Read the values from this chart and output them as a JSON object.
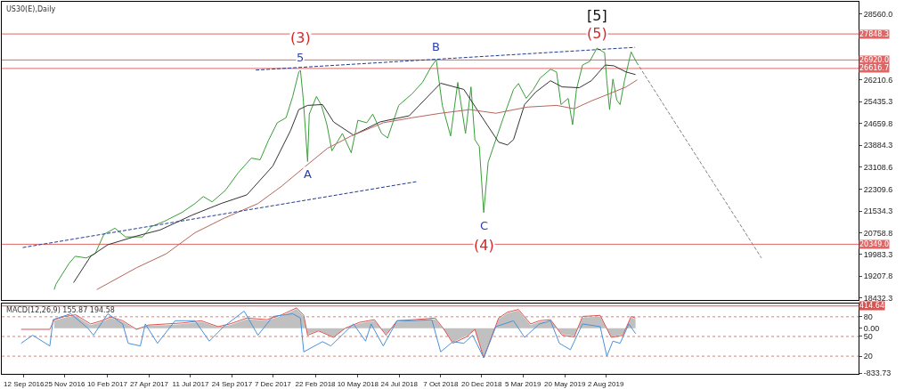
{
  "chart_data": [
    {
      "type": "line",
      "title": "US30(E),Daily",
      "xlim": [
        "2016-08-03",
        "2020-11-02"
      ],
      "ylim": [
        18355,
        28995
      ],
      "tick_labels": "y",
      "yticks": [
        {
          "value": 28560.0,
          "label": "28560.0"
        },
        {
          "value": 26210.6,
          "label": "26210.6"
        },
        {
          "value": 25435.3,
          "label": "25435.3"
        },
        {
          "value": 24659.8,
          "label": "24659.8"
        },
        {
          "value": 23884.3,
          "label": "23884.3"
        },
        {
          "value": 23108.6,
          "label": "23108.6"
        },
        {
          "value": 22309.6,
          "label": "22309.6"
        },
        {
          "value": 21534.3,
          "label": "21534.3"
        },
        {
          "value": 20758.8,
          "label": "20758.8"
        },
        {
          "value": 19983.3,
          "label": "19983.3"
        },
        {
          "value": 19207.8,
          "label": "19207.8"
        },
        {
          "value": 18432.3,
          "label": "18432.3"
        }
      ],
      "series": [
        {
          "color": "#3a9d3a",
          "x": [
            "2016-11-06",
            "2016-11-09",
            "2016-12-03",
            "2016-12-14",
            "2017-01-03",
            "2017-01-19",
            "2017-02-04",
            "2017-02-24",
            "2017-03-15",
            "2017-04-15",
            "2017-05-01",
            "2017-05-25",
            "2017-06-25",
            "2017-07-19",
            "2017-08-03",
            "2017-08-19",
            "2017-09-12",
            "2017-10-05",
            "2017-10-29",
            "2017-11-14",
            "2017-11-29",
            "2017-12-15",
            "2017-12-31",
            "2018-01-12",
            "2018-01-23",
            "2018-01-26",
            "2018-01-31",
            "2018-02-08",
            "2018-02-11",
            "2018-02-24",
            "2018-03-05",
            "2018-03-15",
            "2018-03-24",
            "2018-04-12",
            "2018-04-28",
            "2018-05-10",
            "2018-05-26",
            "2018-06-06",
            "2018-06-22",
            "2018-07-03",
            "2018-07-23",
            "2018-08-16",
            "2018-09-04",
            "2018-09-19",
            "2018-09-29",
            "2018-10-10",
            "2018-10-25",
            "2018-11-07",
            "2018-11-21",
            "2018-12-01",
            "2018-12-08",
            "2018-12-16",
            "2018-12-24",
            "2019-01-01",
            "2019-01-15",
            "2019-01-28",
            "2019-02-16",
            "2019-02-25",
            "2019-03-11",
            "2019-03-24",
            "2019-04-05",
            "2019-04-24",
            "2019-05-05",
            "2019-05-13",
            "2019-05-26",
            "2019-06-03",
            "2019-06-10",
            "2019-06-21",
            "2019-07-04",
            "2019-07-17",
            "2019-07-31",
            "2019-08-04",
            "2019-08-09",
            "2019-08-15",
            "2019-08-22",
            "2019-08-28",
            "2019-09-05",
            "2019-09-13",
            "2019-09-17",
            "2019-09-25",
            "2019-09-30"
          ],
          "values": [
            18730,
            18920,
            19670,
            19920,
            19860,
            20010,
            20700,
            20920,
            20610,
            20610,
            20980,
            21170,
            21480,
            21800,
            22050,
            21860,
            22270,
            22890,
            23420,
            23360,
            24050,
            24680,
            24860,
            25620,
            26490,
            26550,
            25550,
            23300,
            24990,
            25620,
            25300,
            24610,
            23680,
            24300,
            23610,
            24770,
            24680,
            24990,
            24300,
            24140,
            25300,
            25710,
            26120,
            26650,
            26930,
            25300,
            24210,
            26120,
            24300,
            25960,
            24080,
            23830,
            21480,
            23270,
            24080,
            24830,
            25870,
            26080,
            25550,
            25870,
            26270,
            26590,
            26490,
            25330,
            25550,
            24610,
            25870,
            26740,
            26870,
            27340,
            27180,
            26180,
            25150,
            26240,
            25490,
            25330,
            26180,
            26870,
            27210,
            26900,
            26740
          ]
        },
        {
          "color": "#333333",
          "x": [
            "2016-12-11",
            "2017-01-11",
            "2017-02-11",
            "2017-04-04",
            "2017-05-17",
            "2017-07-14",
            "2017-09-04",
            "2017-10-21",
            "2017-12-07",
            "2018-01-08",
            "2018-01-23",
            "2018-02-08",
            "2018-03-07",
            "2018-03-27",
            "2018-05-02",
            "2018-06-19",
            "2018-08-11",
            "2018-10-07",
            "2018-11-18",
            "2018-12-30",
            "2019-01-20",
            "2019-02-05",
            "2019-02-16",
            "2019-03-08",
            "2019-03-28",
            "2019-04-24",
            "2019-05-15",
            "2019-06-15",
            "2019-07-07",
            "2019-08-01",
            "2019-08-17",
            "2019-09-08",
            "2019-09-25"
          ],
          "values": [
            18980,
            19920,
            20330,
            20640,
            20860,
            21390,
            21800,
            22110,
            23140,
            24400,
            25150,
            25300,
            25330,
            24710,
            24240,
            24710,
            24930,
            26090,
            25870,
            24610,
            23990,
            23890,
            24080,
            25330,
            25770,
            26180,
            25960,
            25930,
            26180,
            26740,
            26710,
            26490,
            26400
          ]
        },
        {
          "color": "#b5655a",
          "x": [
            "2017-01-22",
            "2017-04-04",
            "2017-05-28",
            "2017-07-19",
            "2017-09-09",
            "2017-11-10",
            "2017-12-23",
            "2018-02-03",
            "2018-03-16",
            "2018-04-28",
            "2018-06-25",
            "2018-08-16",
            "2018-10-07",
            "2018-11-29",
            "2019-01-15",
            "2019-03-13",
            "2019-05-05",
            "2019-06-06",
            "2019-07-07",
            "2019-08-08",
            "2019-09-08",
            "2019-09-28"
          ],
          "values": [
            18730,
            19510,
            20010,
            20760,
            21270,
            21800,
            22420,
            23110,
            23770,
            24210,
            24680,
            24860,
            25020,
            25150,
            25020,
            25240,
            25300,
            25180,
            25460,
            25710,
            25960,
            26210
          ]
        },
        {
          "color": "#1f3a93",
          "line_style": "dashed",
          "x": [
            "2016-09-10",
            "2018-08-24"
          ],
          "values": [
            20230,
            22580
          ]
        },
        {
          "color": "#1f3a93",
          "line_style": "dashed",
          "x": [
            "2017-11-06",
            "2019-09-24"
          ],
          "values": [
            26560,
            27370
          ]
        },
        {
          "color": "#808080",
          "line_style": "dashed",
          "x": [
            "2019-10-02",
            "2020-05-10"
          ],
          "values": [
            26680,
            19860
          ]
        }
      ],
      "ref_lines": [
        {
          "axis": "y",
          "value": 27848.3,
          "label": "27848.3",
          "color": "#e06666"
        },
        {
          "axis": "y",
          "value": 26920.0,
          "label": "26920.0",
          "color": "#e06666"
        },
        {
          "axis": "y",
          "value": 26616.7,
          "label": "26616.7",
          "color": "#e06666"
        },
        {
          "axis": "y",
          "value": 20349.0,
          "label": "20349.0",
          "color": "#e06666"
        }
      ],
      "annotations": [
        {
          "text": "5",
          "x": "2018-01-26",
          "y": 26550
        },
        {
          "text": "(3)",
          "x": "2018-01-26",
          "y": 26550
        },
        {
          "text": "A",
          "x": "2018-02-08",
          "y": 23300
        },
        {
          "text": "B",
          "x": "2018-09-29",
          "y": 26930
        },
        {
          "text": "C",
          "x": "2018-12-24",
          "y": 21480
        },
        {
          "text": "(4)",
          "x": "2018-12-24",
          "y": 21480
        },
        {
          "text": "(5)",
          "x": "2019-07-17",
          "y": 27340
        },
        {
          "text": "[5]",
          "x": "2019-07-17",
          "y": 27340
        }
      ]
    },
    {
      "type": "line",
      "title": "MACD(12,26,9) 155.87 194.58",
      "xlim": [
        "2016-08-03",
        "2020-11-02"
      ],
      "ylim": [
        -850,
        458
      ],
      "y2lim": [
        -7,
        100
      ],
      "y2ticks": [
        80,
        50,
        20
      ],
      "xticks": [
        {
          "value": "2016-09-12",
          "label": "12 Sep 2016"
        },
        {
          "value": "2016-11-25",
          "label": "25 Nov 2016"
        },
        {
          "value": "2017-02-10",
          "label": "10 Feb 2017"
        },
        {
          "value": "2017-04-27",
          "label": "27 Apr 2017"
        },
        {
          "value": "2017-07-11",
          "label": "11 Jul 2017"
        },
        {
          "value": "2017-09-24",
          "label": "24 Sep 2017"
        },
        {
          "value": "2017-12-07",
          "label": "7 Dec 2017"
        },
        {
          "value": "2018-02-22",
          "label": "22 Feb 2018"
        },
        {
          "value": "2018-05-10",
          "label": "10 May 2018"
        },
        {
          "value": "2018-07-24",
          "label": "24 Jul 2018"
        },
        {
          "value": "2018-10-07",
          "label": "7 Oct 2018"
        },
        {
          "value": "2018-12-20",
          "label": "20 Dec 2018"
        },
        {
          "value": "2019-03-05",
          "label": "5 Mar 2019"
        },
        {
          "value": "2019-05-20",
          "label": "20 May 2019"
        },
        {
          "value": "2019-08-02",
          "label": "2 Aug 2019"
        }
      ],
      "yticks": [
        {
          "value": 0,
          "label": "0.00"
        },
        {
          "value": -833.73,
          "label": "-833.73"
        }
      ],
      "series": [
        {
          "type": "area",
          "color": "#c0c0c0",
          "x": [
            "2016-11-06",
            "2016-11-25",
            "2016-12-15",
            "2017-01-11",
            "2017-01-31",
            "2017-02-16",
            "2017-03-10",
            "2017-04-04",
            "2017-04-26",
            "2017-05-28",
            "2017-06-28",
            "2017-07-30",
            "2017-08-30",
            "2017-09-20",
            "2017-10-21",
            "2017-11-26",
            "2017-12-23",
            "2018-01-19",
            "2018-02-01",
            "2018-02-08",
            "2018-02-28",
            "2018-03-27",
            "2018-04-17",
            "2018-05-13",
            "2018-06-09",
            "2018-06-30",
            "2018-07-20",
            "2018-08-20",
            "2018-09-27",
            "2018-10-13",
            "2018-10-29",
            "2018-11-23",
            "2018-12-08",
            "2018-12-24",
            "2019-01-20",
            "2019-02-05",
            "2019-02-25",
            "2019-03-19",
            "2019-04-04",
            "2019-04-24",
            "2019-05-15",
            "2019-06-06",
            "2019-06-21",
            "2019-07-23",
            "2019-08-12",
            "2019-09-02",
            "2019-09-17",
            "2019-09-25"
          ],
          "values": [
            140,
            200,
            230,
            60,
            120,
            190,
            120,
            -30,
            50,
            60,
            80,
            120,
            20,
            60,
            170,
            140,
            230,
            360,
            220,
            -110,
            -40,
            -160,
            0,
            90,
            140,
            -110,
            120,
            140,
            170,
            -30,
            -260,
            -140,
            -30,
            -530,
            170,
            280,
            330,
            60,
            120,
            140,
            -110,
            -140,
            200,
            220,
            -160,
            -110,
            200,
            170
          ]
        },
        {
          "color": "#d9534f",
          "x": [
            "2016-09-07",
            "2016-10-29",
            "2016-11-06",
            "2016-11-25",
            "2016-12-15",
            "2017-01-11",
            "2017-01-31",
            "2017-02-16",
            "2017-03-10",
            "2017-04-04",
            "2017-04-26",
            "2017-05-28",
            "2017-06-28",
            "2017-07-30",
            "2017-08-30",
            "2017-09-20",
            "2017-10-21",
            "2017-11-26",
            "2017-12-23",
            "2018-01-19",
            "2018-02-01",
            "2018-02-08",
            "2018-02-28",
            "2018-03-27",
            "2018-04-17",
            "2018-05-13",
            "2018-06-09",
            "2018-06-30",
            "2018-07-20",
            "2018-08-20",
            "2018-09-27",
            "2018-10-13",
            "2018-10-29",
            "2018-11-23",
            "2018-12-08",
            "2018-12-24",
            "2019-01-20",
            "2019-02-05",
            "2019-02-25",
            "2019-03-19",
            "2019-04-04",
            "2019-04-24",
            "2019-05-15",
            "2019-06-06",
            "2019-06-21",
            "2019-07-23",
            "2019-08-12",
            "2019-09-02",
            "2019-09-17",
            "2019-09-25"
          ],
          "values": [
            -20,
            -20,
            160,
            220,
            250,
            80,
            140,
            210,
            140,
            -20,
            60,
            80,
            100,
            140,
            30,
            80,
            190,
            160,
            250,
            380,
            240,
            -130,
            -50,
            -170,
            0,
            110,
            160,
            -130,
            140,
            160,
            190,
            -20,
            -280,
            -160,
            -20,
            -550,
            190,
            300,
            350,
            80,
            140,
            160,
            -130,
            -160,
            220,
            240,
            -170,
            -130,
            220,
            190
          ]
        },
        {
          "color": "#4a90d9",
          "x": [
            "2016-09-07",
            "2016-09-28",
            "2016-10-29",
            "2016-11-04",
            "2016-12-06",
            "2017-01-06",
            "2017-01-16",
            "2017-02-11",
            "2017-03-10",
            "2017-03-20",
            "2017-04-11",
            "2017-04-20",
            "2017-05-12",
            "2017-06-13",
            "2017-07-19",
            "2017-08-14",
            "2017-09-09",
            "2017-10-16",
            "2017-11-10",
            "2017-12-07",
            "2018-01-12",
            "2018-01-26",
            "2018-02-01",
            "2018-03-07",
            "2018-03-22",
            "2018-05-02",
            "2018-05-24",
            "2018-06-03",
            "2018-06-25",
            "2018-07-20",
            "2018-08-16",
            "2018-09-21",
            "2018-10-07",
            "2018-10-29",
            "2018-11-18",
            "2018-12-04",
            "2018-12-24",
            "2019-01-15",
            "2019-02-16",
            "2019-03-08",
            "2019-04-04",
            "2019-04-24",
            "2019-05-10",
            "2019-05-30",
            "2019-06-21",
            "2019-07-23",
            "2019-08-04",
            "2019-08-15",
            "2019-08-28",
            "2019-09-13",
            "2019-09-25"
          ],
          "values": [
            -280,
            -130,
            -330,
            160,
            270,
            0,
            -130,
            270,
            80,
            -280,
            -330,
            80,
            -280,
            140,
            140,
            -240,
            30,
            320,
            -130,
            220,
            270,
            190,
            -440,
            -250,
            -330,
            80,
            -240,
            80,
            -330,
            140,
            140,
            160,
            -440,
            -250,
            -280,
            -130,
            -550,
            30,
            140,
            -170,
            80,
            140,
            -280,
            -400,
            80,
            30,
            -520,
            -240,
            -280,
            80,
            -100
          ]
        }
      ],
      "ref_lines": [
        {
          "axis": "y",
          "value": 414.64,
          "label": "414.64",
          "color": "#d9534f"
        },
        {
          "axis": "y2",
          "value": 80,
          "color": "#c9877f",
          "line_style": "dotted"
        },
        {
          "axis": "y2",
          "value": 50,
          "color": "#c9877f",
          "line_style": "dotted"
        },
        {
          "axis": "y2",
          "value": 20,
          "color": "#c9877f",
          "line_style": "dotted"
        }
      ]
    }
  ]
}
